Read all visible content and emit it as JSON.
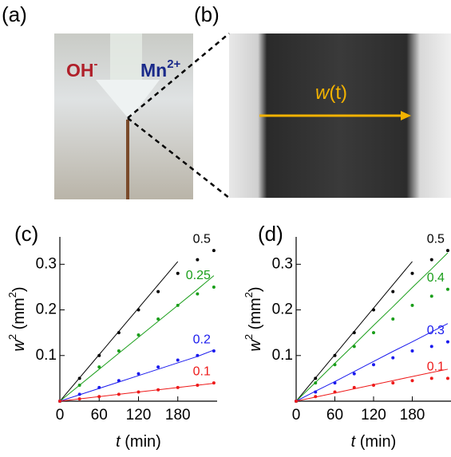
{
  "panels": {
    "a": {
      "label": "(a)",
      "left_ion": "OH",
      "left_charge": "-",
      "right_ion": "Mn",
      "right_charge": "2+"
    },
    "b": {
      "label": "(b)",
      "arrow_var": "w",
      "arrow_arg": "(t)"
    },
    "c": {
      "label": "(c)"
    },
    "d": {
      "label": "(d)"
    }
  },
  "chart_data": [
    {
      "type": "scatter-fit",
      "origin_label": "0",
      "x_label": {
        "var": "t",
        "unit": " (min)"
      },
      "y_label": {
        "var": "w",
        "exp": "2",
        "unit": " (mm",
        "unit_exp": "2",
        "close": ")"
      },
      "x": [
        0,
        30,
        60,
        90,
        120,
        150,
        180,
        210,
        235
      ],
      "xlim": [
        0,
        240
      ],
      "xticks": [
        60,
        120,
        180
      ],
      "ylim": [
        0,
        0.36
      ],
      "yticks": [
        0.1,
        0.2,
        0.3
      ],
      "series": [
        {
          "name": "0.5",
          "color": "#000000",
          "values": [
            0,
            0.05,
            0.1,
            0.15,
            0.2,
            0.24,
            0.28,
            0.31,
            0.33
          ],
          "fit": [
            0,
            0.051,
            0.102,
            0.153,
            0.204,
            0.255,
            0.306,
            null,
            null
          ]
        },
        {
          "name": "0.25",
          "color": "#1a9e1a",
          "values": [
            0,
            0.035,
            0.075,
            0.11,
            0.145,
            0.18,
            0.21,
            0.235,
            0.25
          ],
          "fit": [
            0,
            0.035,
            0.07,
            0.105,
            0.14,
            0.175,
            0.21,
            0.245,
            0.275
          ]
        },
        {
          "name": "0.2",
          "color": "#1a1aee",
          "values": [
            0,
            0.015,
            0.03,
            0.045,
            0.06,
            0.075,
            0.09,
            0.1,
            0.11
          ],
          "fit": [
            0,
            0.014,
            0.028,
            0.042,
            0.056,
            0.07,
            0.084,
            0.098,
            0.112
          ]
        },
        {
          "name": "0.1",
          "color": "#ee1a1a",
          "values": [
            0,
            0.005,
            0.01,
            0.015,
            0.02,
            0.025,
            0.03,
            0.035,
            0.04
          ],
          "fit": [
            0,
            0.005,
            0.01,
            0.015,
            0.02,
            0.025,
            0.03,
            0.035,
            0.039
          ]
        }
      ]
    },
    {
      "type": "scatter-fit",
      "origin_label": "0",
      "x_label": {
        "var": "t",
        "unit": " (min)"
      },
      "y_label": {
        "var": "w",
        "exp": "2",
        "unit": " (mm",
        "unit_exp": "2",
        "close": ")"
      },
      "x": [
        0,
        30,
        60,
        90,
        120,
        150,
        180,
        210,
        235
      ],
      "xlim": [
        0,
        240
      ],
      "xticks": [
        60,
        120,
        180
      ],
      "ylim": [
        0,
        0.36
      ],
      "yticks": [
        0.1,
        0.2,
        0.3
      ],
      "series": [
        {
          "name": "0.5",
          "color": "#000000",
          "values": [
            0,
            0.05,
            0.1,
            0.15,
            0.2,
            0.24,
            0.28,
            0.31,
            0.33
          ],
          "fit": [
            0,
            0.051,
            0.102,
            0.153,
            0.204,
            0.255,
            0.306,
            null,
            null
          ]
        },
        {
          "name": "0.4",
          "color": "#1a9e1a",
          "values": [
            0,
            0.04,
            0.08,
            0.12,
            0.15,
            0.18,
            0.21,
            0.23,
            0.245
          ],
          "fit": [
            0,
            0.041,
            0.083,
            0.124,
            0.166,
            0.207,
            0.249,
            0.29,
            0.325
          ]
        },
        {
          "name": "0.3",
          "color": "#1a1aee",
          "values": [
            0,
            0.02,
            0.04,
            0.06,
            0.08,
            0.095,
            0.11,
            0.12,
            0.13
          ],
          "fit": [
            0,
            0.022,
            0.043,
            0.065,
            0.087,
            0.109,
            0.13,
            0.152,
            0.17
          ]
        },
        {
          "name": "0.1",
          "color": "#ee1a1a",
          "values": [
            0,
            0.01,
            0.02,
            0.03,
            0.035,
            0.04,
            0.045,
            0.05,
            0.05
          ],
          "fit": [
            0,
            0.009,
            0.018,
            0.027,
            0.036,
            0.045,
            0.054,
            0.063,
            0.07
          ]
        }
      ]
    }
  ]
}
